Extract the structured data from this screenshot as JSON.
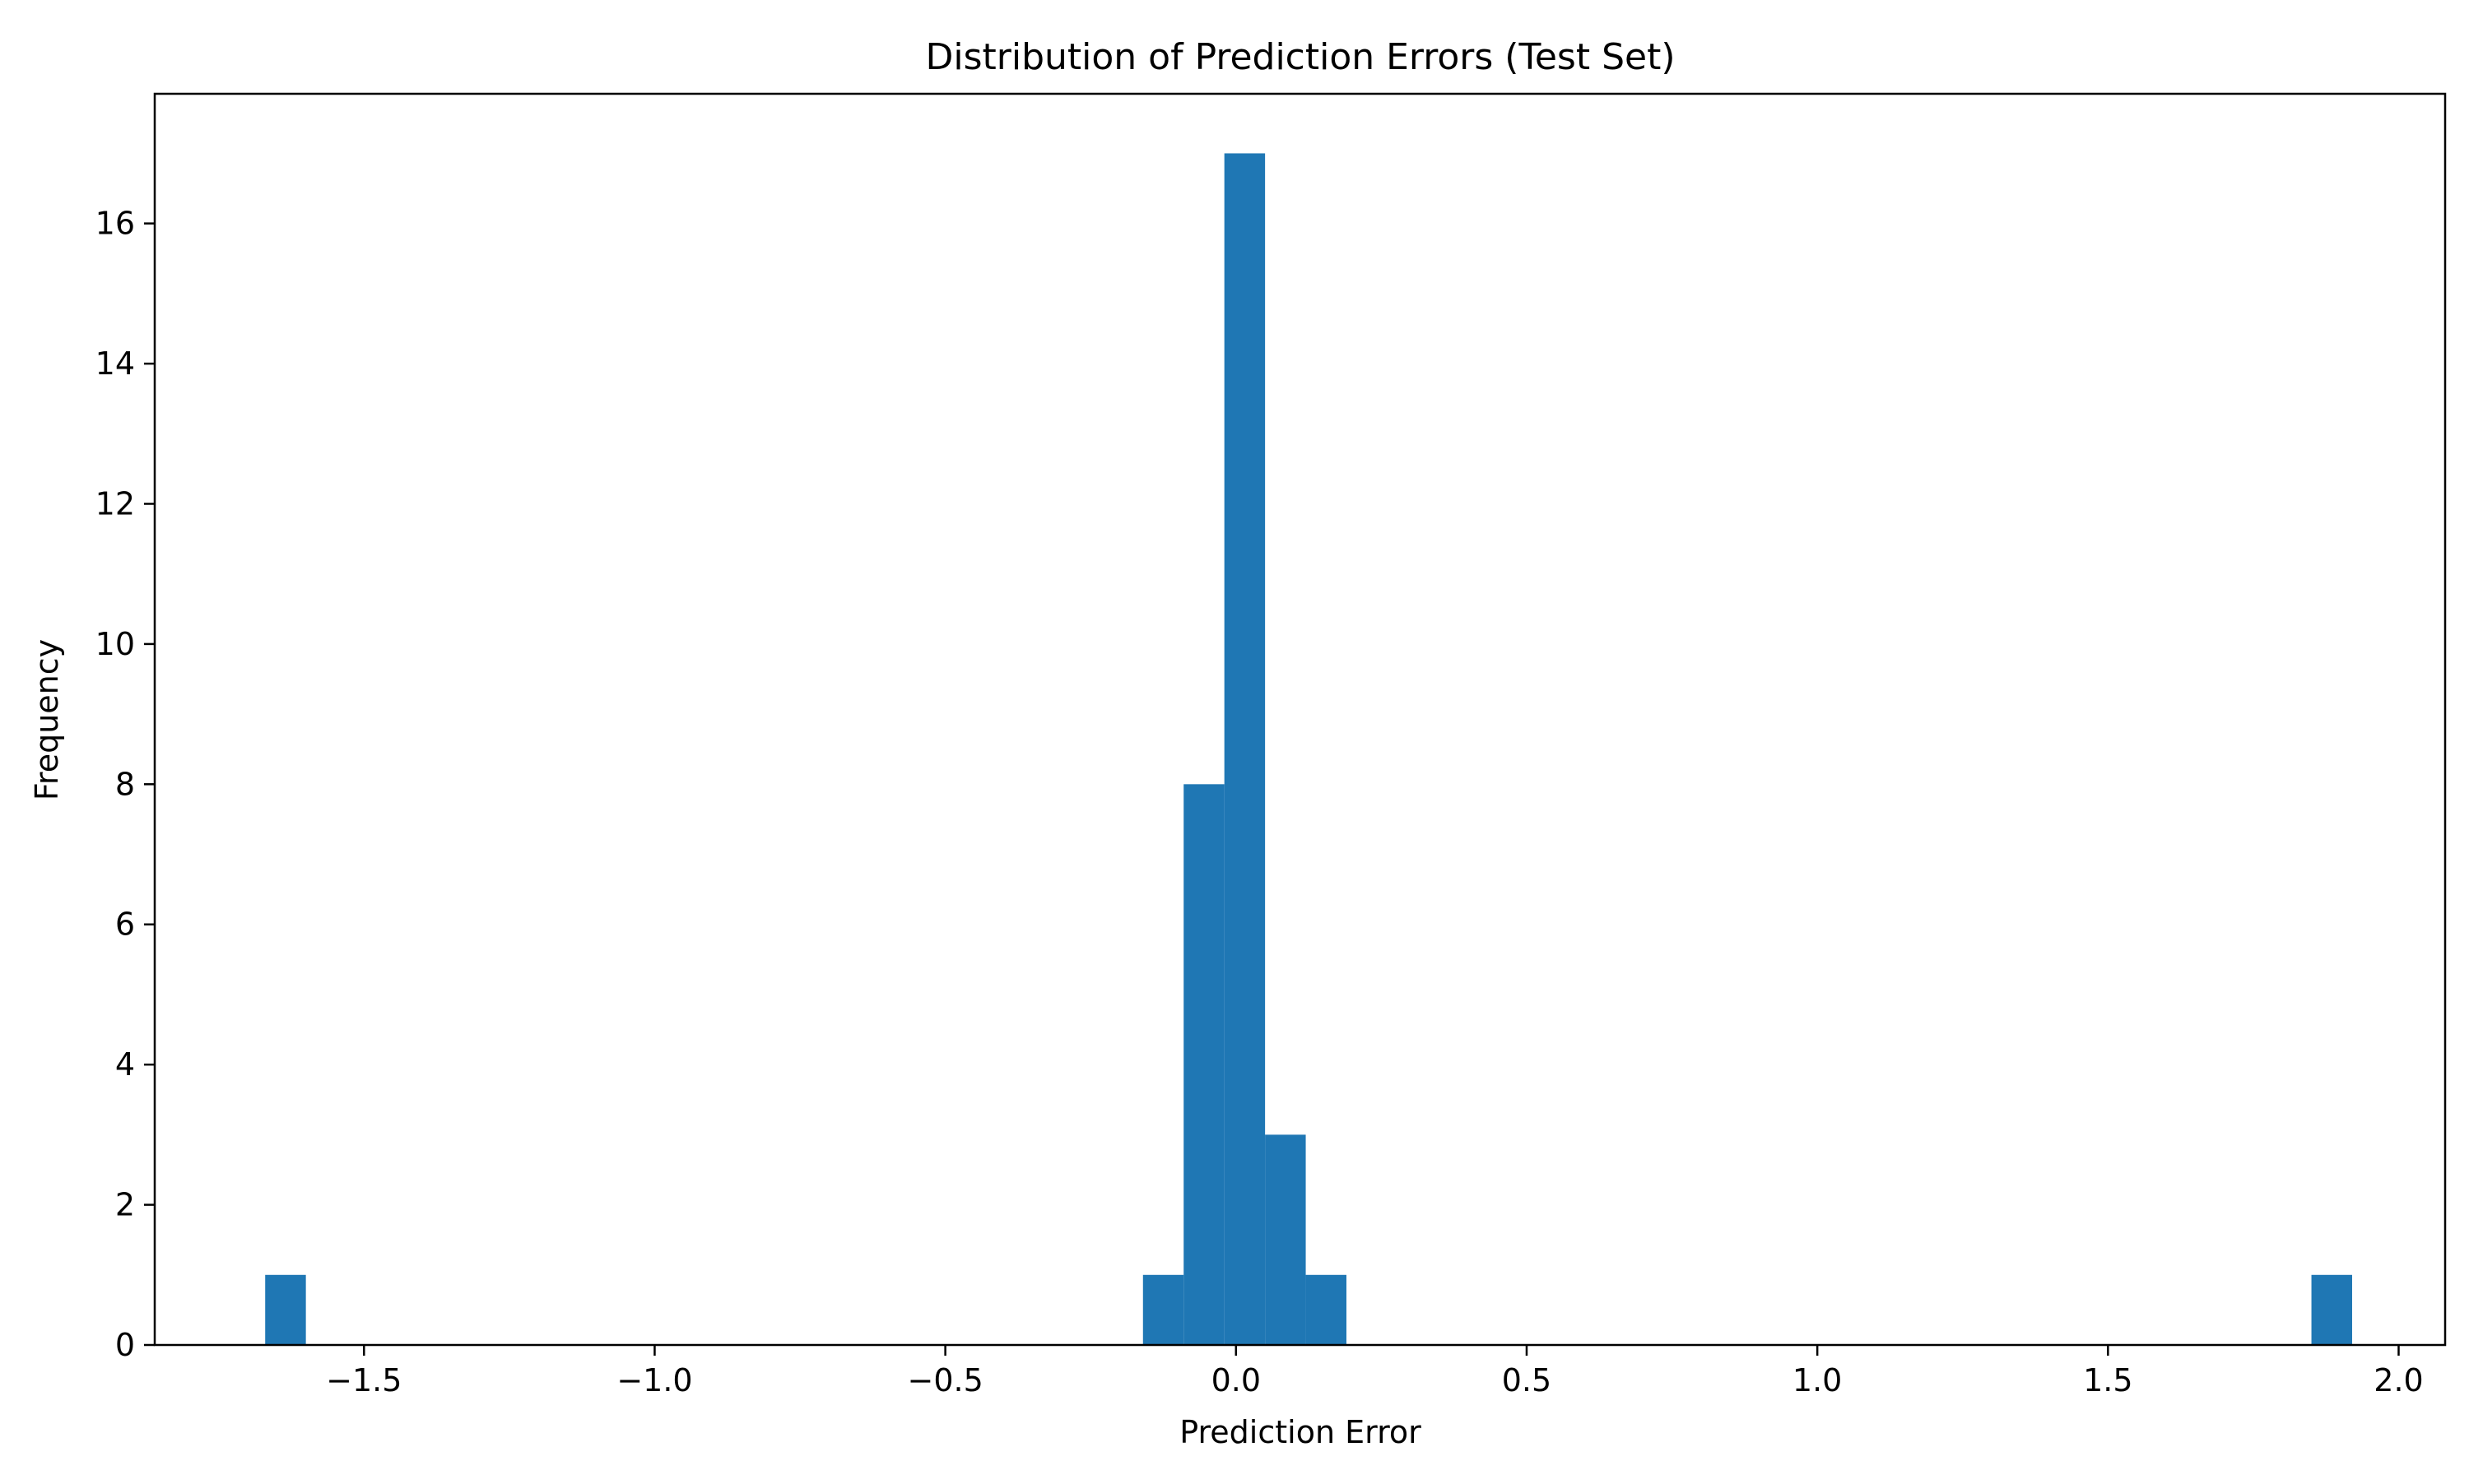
{
  "chart_data": {
    "type": "histogram",
    "title": "Distribution of Prediction Errors (Test Set)",
    "xlabel": "Prediction Error",
    "ylabel": "Frequency",
    "xlim": [
      -1.86,
      2.08
    ],
    "ylim": [
      0,
      17.85
    ],
    "xticks": [
      -1.5,
      -1.0,
      -0.5,
      0.0,
      0.5,
      1.0,
      1.5,
      2.0
    ],
    "xtick_labels": [
      "−1.5",
      "−1.0",
      "−0.5",
      "0.0",
      "0.5",
      "1.0",
      "1.5",
      "2.0"
    ],
    "yticks": [
      0,
      2,
      4,
      6,
      8,
      10,
      12,
      14,
      16
    ],
    "ytick_labels": [
      "0",
      "2",
      "4",
      "6",
      "8",
      "10",
      "12",
      "14",
      "16"
    ],
    "bins": [
      {
        "x0": -1.67,
        "x1": -1.6,
        "count": 1
      },
      {
        "x0": -0.16,
        "x1": -0.09,
        "count": 1
      },
      {
        "x0": -0.09,
        "x1": -0.02,
        "count": 8
      },
      {
        "x0": -0.02,
        "x1": 0.05,
        "count": 17
      },
      {
        "x0": 0.05,
        "x1": 0.12,
        "count": 3
      },
      {
        "x0": 0.12,
        "x1": 0.19,
        "count": 1
      },
      {
        "x0": 1.85,
        "x1": 1.92,
        "count": 1
      }
    ],
    "bar_color": "#1f77b4",
    "grid": false,
    "legend": "none"
  }
}
